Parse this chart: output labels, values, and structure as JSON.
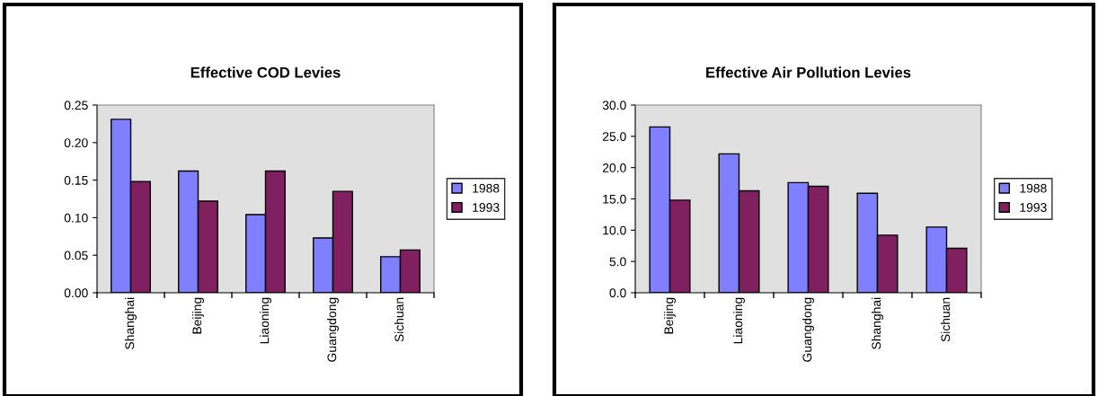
{
  "chart_data": [
    {
      "type": "bar",
      "title": "Effective COD Levies",
      "categories": [
        "Shanghai",
        "Beijing",
        "Liaoning",
        "Guangdong",
        "Sichuan"
      ],
      "series": [
        {
          "name": "1988",
          "color": "#8080ff",
          "values": [
            0.231,
            0.162,
            0.104,
            0.073,
            0.048
          ]
        },
        {
          "name": "1993",
          "color": "#802060",
          "values": [
            0.148,
            0.122,
            0.162,
            0.135,
            0.057
          ]
        }
      ],
      "ylim": [
        0,
        0.25
      ],
      "yticks": [
        {
          "value": 0,
          "label": "0.00"
        },
        {
          "value": 0.05,
          "label": "0.05"
        },
        {
          "value": 0.1,
          "label": "0.10"
        },
        {
          "value": 0.15,
          "label": "0.15"
        },
        {
          "value": 0.2,
          "label": "0.20"
        },
        {
          "value": 0.25,
          "label": "0.25"
        }
      ],
      "grid": false,
      "legend": "right"
    },
    {
      "type": "bar",
      "title": "Effective Air Pollution Levies",
      "categories": [
        "Beijing",
        "Liaoning",
        "Guangdong",
        "Shanghai",
        "Sichuan"
      ],
      "series": [
        {
          "name": "1988",
          "color": "#8080ff",
          "values": [
            26.5,
            22.2,
            17.6,
            15.9,
            10.5
          ]
        },
        {
          "name": "1993",
          "color": "#802060",
          "values": [
            14.8,
            16.3,
            17.0,
            9.2,
            7.1
          ]
        }
      ],
      "ylim": [
        0,
        30
      ],
      "yticks": [
        {
          "value": 0,
          "label": "0.0"
        },
        {
          "value": 5,
          "label": "5.0"
        },
        {
          "value": 10,
          "label": "10.0"
        },
        {
          "value": 15,
          "label": "15.0"
        },
        {
          "value": 20,
          "label": "20.0"
        },
        {
          "value": 25,
          "label": "25.0"
        },
        {
          "value": 30,
          "label": "30.0"
        }
      ],
      "grid": false,
      "legend": "right"
    }
  ]
}
